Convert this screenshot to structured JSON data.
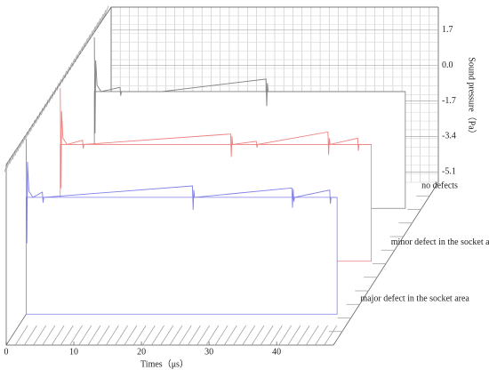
{
  "chart_data": {
    "type": "waterfall3d",
    "x_label": "Times（μs）",
    "y_label": "Sound pressure（Pa）",
    "xlim": [
      0,
      48.4
    ],
    "xticks": [
      0,
      10,
      20,
      30,
      40
    ],
    "ylim": [
      -5.6,
      2.8
    ],
    "yticks": [
      1.7,
      {
        "value": 0,
        "label": "0.0"
      },
      -1.7,
      -3.4,
      -5.1
    ],
    "grid": true,
    "series": [
      {
        "name": "no defects",
        "color": "#808080",
        "x": [
          0,
          0.1,
          0.2,
          0.4,
          1,
          3.8,
          3.9,
          4.0,
          10,
          25.4,
          25.5,
          25.6,
          25.7,
          46
        ],
        "values": [
          2.6,
          -2.0,
          1.5,
          0.3,
          0,
          0.2,
          -0.2,
          0,
          0,
          0.6,
          -0.7,
          0.4,
          0,
          0
        ]
      },
      {
        "name": "minor defect in the socket area",
        "color": "#f08080",
        "x": [
          0,
          0.1,
          0.2,
          0.4,
          1,
          3.3,
          3.4,
          3.5,
          25.2,
          25.3,
          25.4,
          25.5,
          29,
          29.1,
          29.2,
          39.6,
          39.7,
          39.8,
          39.9,
          44,
          44.1,
          44.2,
          46
        ],
        "values": [
          2.7,
          -2.1,
          1.6,
          0.3,
          0,
          0.2,
          -0.2,
          0,
          0.5,
          -0.6,
          0.4,
          0,
          0.15,
          -0.15,
          0,
          0.6,
          -0.5,
          0.3,
          0,
          0.3,
          -0.3,
          0,
          0
        ]
      },
      {
        "name": "major defect in the socket area",
        "color": "#8080e8",
        "x": [
          0,
          0.1,
          0.2,
          0.4,
          1,
          2.4,
          2.5,
          2.6,
          24.6,
          24.7,
          24.8,
          24.9,
          39.3,
          39.4,
          39.5,
          39.6,
          39.7,
          44.9,
          45.0,
          45.1,
          46
        ],
        "values": [
          2.8,
          -2.2,
          1.7,
          0.3,
          0,
          0.25,
          -0.25,
          0,
          0.55,
          -0.6,
          0.35,
          0,
          0.45,
          -0.5,
          0.4,
          -0.2,
          0,
          0.35,
          -0.3,
          0,
          0
        ]
      }
    ]
  }
}
